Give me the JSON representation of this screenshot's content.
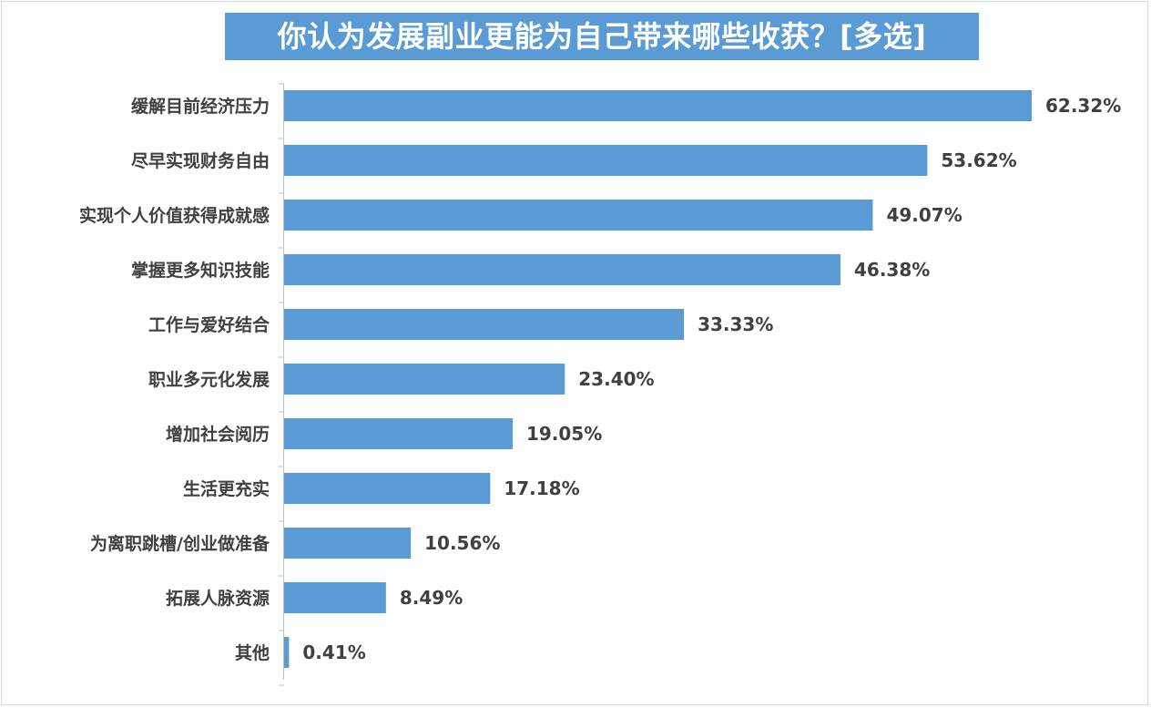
{
  "chart_data": {
    "type": "bar",
    "orientation": "horizontal",
    "title": "你认为发展副业更能为自己带来哪些收获？[多选]",
    "categories": [
      "缓解目前经济压力",
      "尽早实现财务自由",
      "实现个人价值获得成就感",
      "掌握更多知识技能",
      "工作与爱好结合",
      "职业多元化发展",
      "增加社会阅历",
      "生活更充实",
      "为离职跳槽/创业做准备",
      "拓展人脉资源",
      "其他"
    ],
    "values": [
      62.32,
      53.62,
      49.07,
      46.38,
      33.33,
      23.4,
      19.05,
      17.18,
      10.56,
      8.49,
      0.41
    ],
    "value_labels": [
      "62.32%",
      "53.62%",
      "49.07%",
      "46.38%",
      "33.33%",
      "23.40%",
      "19.05%",
      "17.18%",
      "10.56%",
      "8.49%",
      "0.41%"
    ],
    "unit": "%",
    "bar_color": "#5b9bd5",
    "title_background": "#5b9bd5",
    "grid": false,
    "legend": "none"
  }
}
